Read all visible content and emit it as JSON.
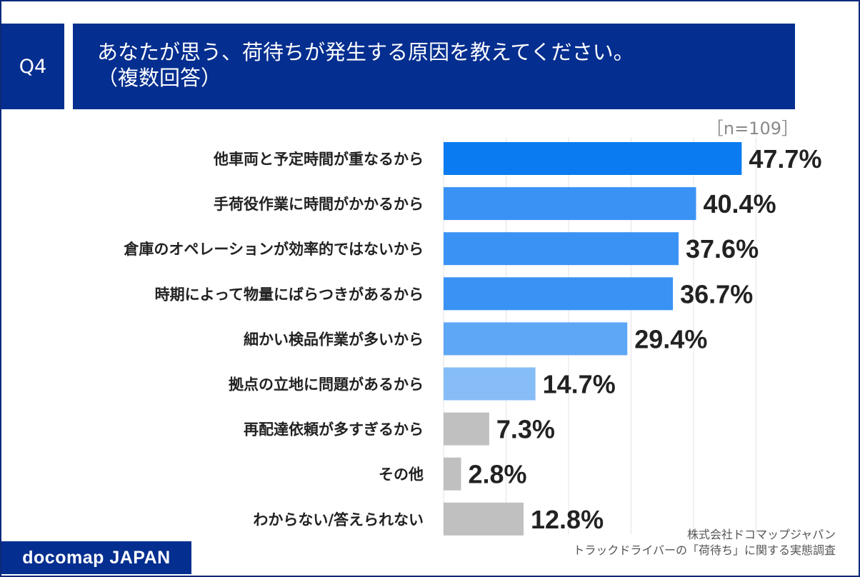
{
  "header": {
    "q_number": "Q4",
    "title_line1": "あなたが思う、荷待ちが発生する原因を教えてください。",
    "title_line2": "（複数回答）"
  },
  "sample_size": "［n=109］",
  "chart_data": {
    "type": "bar",
    "orientation": "horizontal",
    "categories": [
      "他車両と予定時間が重なるから",
      "手荷役作業に時間がかかるから",
      "倉庫のオペレーションが効率的ではないから",
      "時期によって物量にばらつきがあるから",
      "細かい検品作業が多いから",
      "拠点の立地に問題があるから",
      "再配達依頼が多すぎるから",
      "その他",
      "わからない/答えられない"
    ],
    "values": [
      47.7,
      40.4,
      37.6,
      36.7,
      29.4,
      14.7,
      7.3,
      2.8,
      12.8
    ],
    "value_labels": [
      "47.7%",
      "40.4%",
      "37.6%",
      "36.7%",
      "29.4%",
      "14.7%",
      "7.3%",
      "2.8%",
      "12.8%"
    ],
    "colors": [
      "#0a7bf0",
      "#3a92f5",
      "#3a92f5",
      "#3a92f5",
      "#5ea7f6",
      "#86bdf8",
      "#c0c0c0",
      "#c0c0c0",
      "#c0c0c0"
    ],
    "xlim": [
      0,
      50
    ],
    "unit": "%",
    "grid": true
  },
  "footer": {
    "brand": "docomap JAPAN",
    "source_line1": "株式会社ドコマップジャパン",
    "source_line2": "トラックドライバーの「荷待ち」に関する実態調査"
  }
}
